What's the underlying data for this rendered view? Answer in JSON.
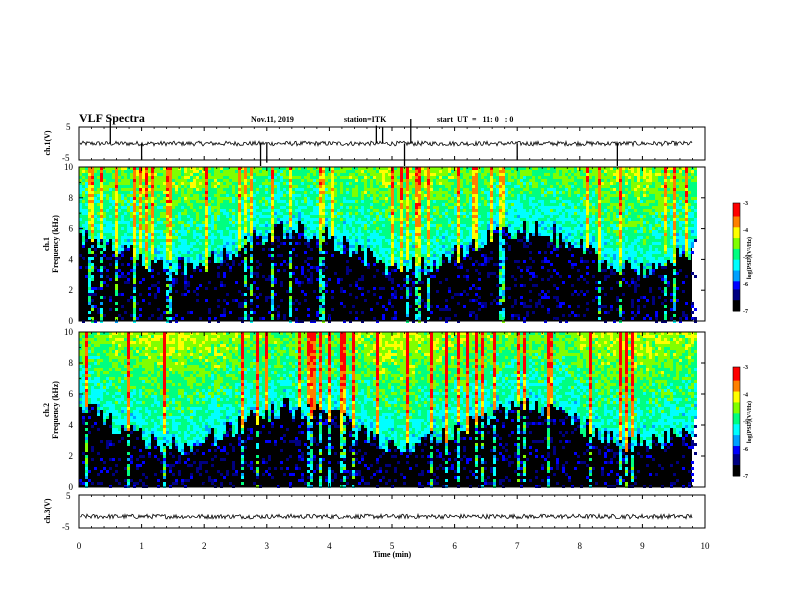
{
  "header": {
    "title": "VLF Spectra",
    "date": "Nov.11, 2019",
    "station": "station=ITK",
    "start": "start  UT  =   11: 0   : 0"
  },
  "chart_data": [
    {
      "type": "line",
      "panel": "ch1-waveform",
      "ylabel": "ch.1(V)",
      "ylim": [
        -5,
        5
      ],
      "yticks": [
        "5",
        "-5"
      ],
      "xlim": [
        0,
        10
      ],
      "baseline": 0,
      "spikes": [
        {
          "x": 0.5,
          "y": 5
        },
        {
          "x": 1.0,
          "y": -3
        },
        {
          "x": 2.9,
          "y": -5
        },
        {
          "x": 3.0,
          "y": -4
        },
        {
          "x": 4.75,
          "y": 3
        },
        {
          "x": 4.85,
          "y": 2.5
        },
        {
          "x": 5.2,
          "y": -5
        },
        {
          "x": 5.3,
          "y": 5
        },
        {
          "x": 7.0,
          "y": -3
        },
        {
          "x": 8.6,
          "y": -5
        }
      ],
      "color": "#000000"
    },
    {
      "type": "heatmap",
      "panel": "ch1-spectrogram",
      "ylabel_top": "ch.1",
      "ylabel": "Frequency (kHz)",
      "ylim": [
        0,
        10
      ],
      "yticks": [
        "0",
        "2",
        "4",
        "6",
        "8",
        "10"
      ],
      "xlim": [
        0,
        9.85
      ],
      "colorbar_label": "log(PSD)(V²/Hz)",
      "colorbar_range": [
        -7,
        -3
      ],
      "colorbar_ticks": [
        "-3",
        "-4",
        "-5",
        "-6",
        "-7"
      ],
      "colormap": [
        "#000000",
        "#000080",
        "#0000ff",
        "#00a0ff",
        "#00ffff",
        "#00ff80",
        "#80ff00",
        "#ffff00",
        "#ff8000",
        "#ff0000",
        "#c00000",
        "#ffffff"
      ],
      "background_level": "black below ~5 kHz, green/cyan above"
    },
    {
      "type": "heatmap",
      "panel": "ch2-spectrogram",
      "ylabel_top": "ch.2",
      "ylabel": "Frequency (kHz)",
      "ylim": [
        0,
        10
      ],
      "yticks": [
        "0",
        "2",
        "4",
        "6",
        "8",
        "10"
      ],
      "xlim": [
        0,
        9.85
      ],
      "colorbar_label": "log(PSD)(V²/Hz)",
      "colorbar_range": [
        -7,
        -3
      ],
      "colorbar_ticks": [
        "-3",
        "-4",
        "-5",
        "-6",
        "-7"
      ],
      "colormap": [
        "#000000",
        "#000080",
        "#0000ff",
        "#00a0ff",
        "#00ffff",
        "#00ff80",
        "#80ff00",
        "#ffff00",
        "#ff8000",
        "#ff0000",
        "#c00000",
        "#ffffff"
      ],
      "background_level": "black below ~4 kHz, green/red above"
    },
    {
      "type": "line",
      "panel": "ch3-waveform",
      "ylabel": "ch.3(V)",
      "ylim": [
        -5,
        5
      ],
      "yticks": [
        "5",
        "-5"
      ],
      "xlim": [
        0,
        10
      ],
      "baseline": -1.5,
      "color": "#000000"
    }
  ],
  "xaxis": {
    "label": "Time (min)",
    "ticks": [
      "0",
      "1",
      "2",
      "3",
      "4",
      "5",
      "6",
      "7",
      "8",
      "9",
      "10"
    ]
  }
}
